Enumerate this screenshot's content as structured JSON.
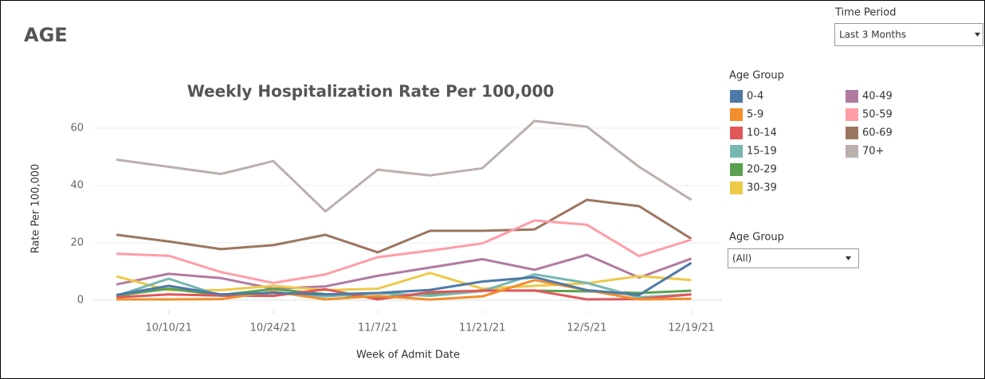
{
  "header": {
    "title": "AGE"
  },
  "filters": [
    {
      "label": "Time Period",
      "value": "Last 3 Months"
    },
    {
      "label": "Age Group",
      "value": "(All)"
    }
  ],
  "chart_data": {
    "type": "line",
    "title": "Weekly Hospitalization Rate Per 100,000",
    "x_label": "Week of Admit Date",
    "y_label": "Rate Per 100,000",
    "legend_title": "Age Group",
    "x": [
      "10/3/21",
      "10/10/21",
      "10/17/21",
      "10/24/21",
      "10/31/21",
      "11/7/21",
      "11/14/21",
      "11/21/21",
      "11/28/21",
      "12/5/21",
      "12/12/21",
      "12/19/21"
    ],
    "xlim": [
      "9/30/21",
      "12/23/21"
    ],
    "xticks": [
      "10/10/21",
      "10/24/21",
      "11/7/21",
      "11/21/21",
      "12/5/21",
      "12/19/21"
    ],
    "ylim": [
      -3.6,
      65.8
    ],
    "yticks": [
      0,
      20,
      40,
      60
    ],
    "grid": true,
    "series": [
      {
        "name": "0-4",
        "color": "#4e79a7",
        "values": [
          1.8,
          5,
          2,
          2.6,
          2,
          2.5,
          3.6,
          6.5,
          8,
          3.5,
          1.8,
          13
        ]
      },
      {
        "name": "5-9",
        "color": "#f28e2b",
        "values": [
          0.3,
          0.3,
          0.4,
          3,
          0.3,
          1.5,
          0.2,
          1.3,
          7,
          3.5,
          0.3,
          0.5
        ]
      },
      {
        "name": "10-14",
        "color": "#e15759",
        "values": [
          1,
          2,
          1.6,
          1.5,
          3.8,
          0.3,
          2.8,
          3.3,
          3.4,
          0.3,
          0.4,
          2
        ]
      },
      {
        "name": "15-19",
        "color": "#76b7b2",
        "values": [
          1.5,
          7.5,
          1.5,
          2.5,
          1.3,
          2.5,
          1.5,
          3.2,
          9,
          6,
          1,
          2
        ]
      },
      {
        "name": "20-29",
        "color": "#59a14f",
        "values": [
          1.6,
          4,
          1.8,
          3.9,
          2.1,
          1.1,
          2,
          3.4,
          3.3,
          3.1,
          2.5,
          3.3
        ]
      },
      {
        "name": "30-39",
        "color": "#edc948",
        "values": [
          8.3,
          3.5,
          3.5,
          5,
          3.5,
          4,
          9.5,
          4,
          5,
          5.9,
          8.4,
          7
        ]
      },
      {
        "name": "40-49",
        "color": "#b07aa1",
        "values": [
          5.5,
          9.2,
          7.7,
          4,
          4.8,
          8.5,
          11.4,
          14.3,
          10.6,
          15.8,
          7.9,
          14.5
        ]
      },
      {
        "name": "50-59",
        "color": "#ff9da7",
        "values": [
          16.2,
          15.5,
          9.8,
          6,
          9,
          15,
          17.3,
          19.8,
          27.8,
          26.3,
          15.4,
          21.1
        ]
      },
      {
        "name": "60-69",
        "color": "#9c755f",
        "values": [
          22.8,
          20.5,
          17.8,
          19.2,
          22.8,
          16.7,
          24.2,
          24.2,
          24.7,
          35,
          32.8,
          21.4
        ]
      },
      {
        "name": "70+",
        "color": "#bab0ac",
        "values": [
          49,
          46.5,
          44,
          48.5,
          31,
          45.5,
          43.5,
          46,
          62.5,
          60.5,
          46.5,
          35
        ]
      }
    ]
  }
}
